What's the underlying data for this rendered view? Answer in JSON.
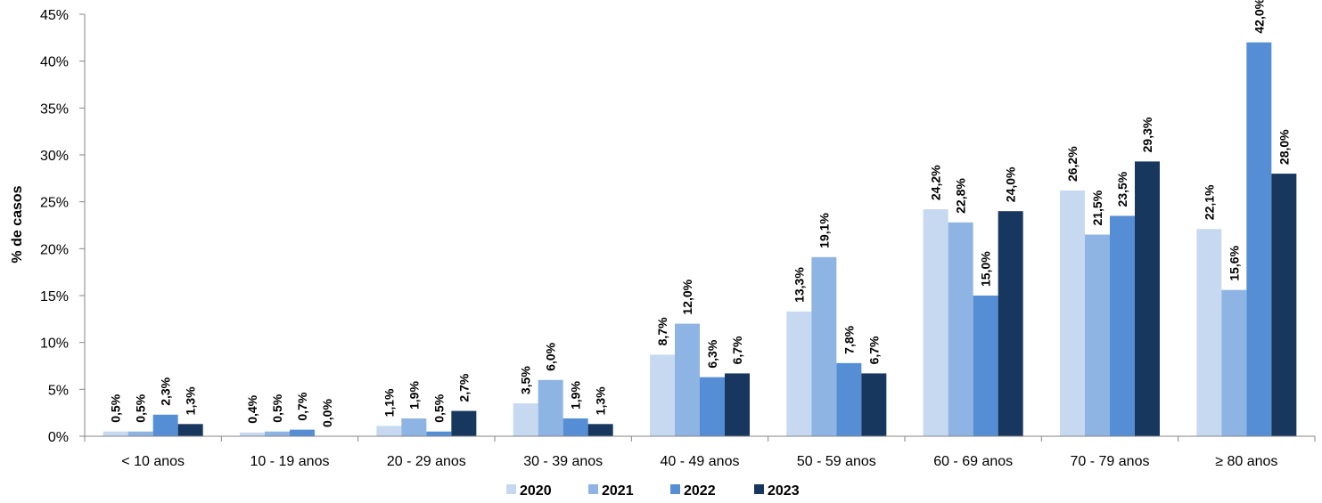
{
  "chart_data": {
    "type": "bar",
    "ylabel": "% de casos",
    "xlabel": "",
    "ylim": [
      0,
      45
    ],
    "yticks": [
      0,
      5,
      10,
      15,
      20,
      25,
      30,
      35,
      40,
      45
    ],
    "ytick_labels": [
      "0%",
      "5%",
      "10%",
      "15%",
      "20%",
      "25%",
      "30%",
      "35%",
      "40%",
      "45%"
    ],
    "grid": false,
    "legend_position": "bottom",
    "categories": [
      "< 10 anos",
      "10 - 19 anos",
      "20 - 29 anos",
      "30 - 39 anos",
      "40 - 49 anos",
      "50 - 59 anos",
      "60 - 69 anos",
      "70 - 79 anos",
      "≥ 80 anos"
    ],
    "series": [
      {
        "name": "2020",
        "color": "#C6D9F1",
        "values": [
          0.5,
          0.4,
          1.1,
          3.5,
          8.7,
          13.3,
          24.2,
          26.2,
          22.1
        ],
        "labels": [
          "0,5%",
          "0,4%",
          "1,1%",
          "3,5%",
          "8,7%",
          "13,3%",
          "24,2%",
          "26,2%",
          "22,1%"
        ]
      },
      {
        "name": "2021",
        "color": "#8EB4E3",
        "values": [
          0.5,
          0.5,
          1.9,
          6.0,
          12.0,
          19.1,
          22.8,
          21.5,
          15.6
        ],
        "labels": [
          "0,5%",
          "0,5%",
          "1,9%",
          "6,0%",
          "12,0%",
          "19,1%",
          "22,8%",
          "21,5%",
          "15,6%"
        ]
      },
      {
        "name": "2022",
        "color": "#558ED5",
        "values": [
          2.3,
          0.7,
          0.5,
          1.9,
          6.3,
          7.8,
          15.0,
          23.5,
          42.0
        ],
        "labels": [
          "2,3%",
          "0,7%",
          "0,5%",
          "1,9%",
          "6,3%",
          "7,8%",
          "15,0%",
          "23,5%",
          "42,0%"
        ]
      },
      {
        "name": "2023",
        "color": "#17375E",
        "values": [
          1.3,
          0.0,
          2.7,
          1.3,
          6.7,
          6.7,
          24.0,
          29.3,
          28.0
        ],
        "labels": [
          "1,3%",
          "0,0%",
          "2,7%",
          "1,3%",
          "6,7%",
          "6,7%",
          "24,0%",
          "29,3%",
          "28,0%"
        ]
      }
    ]
  }
}
